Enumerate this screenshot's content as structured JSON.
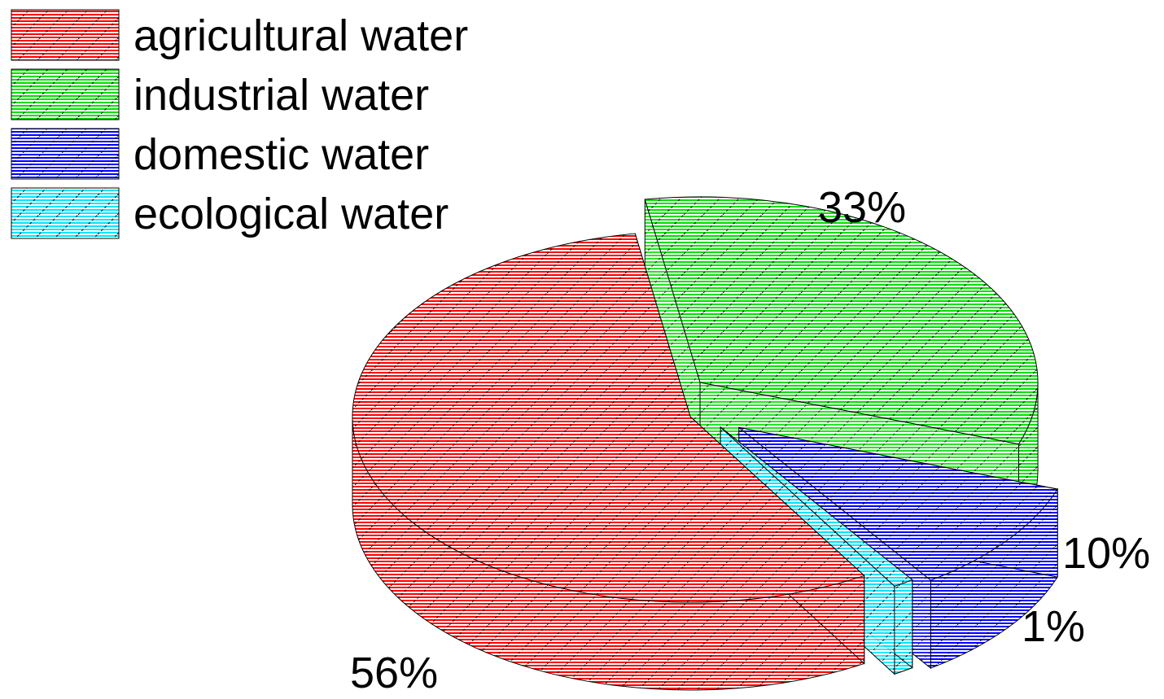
{
  "chart_data": {
    "type": "pie",
    "style": "3d-exploded-hatched",
    "title": "",
    "legend_position": "top-left",
    "series": [
      {
        "name": "agricultural water",
        "value": 56,
        "label": "56%",
        "color": "#ff0000"
      },
      {
        "name": "industrial water",
        "value": 33,
        "label": "33%",
        "color": "#00e000"
      },
      {
        "name": "domestic water",
        "value": 10,
        "label": "10%",
        "color": "#0000ff"
      },
      {
        "name": "ecological water",
        "value": 1,
        "label": "1%",
        "color": "#00e5ff"
      }
    ]
  }
}
